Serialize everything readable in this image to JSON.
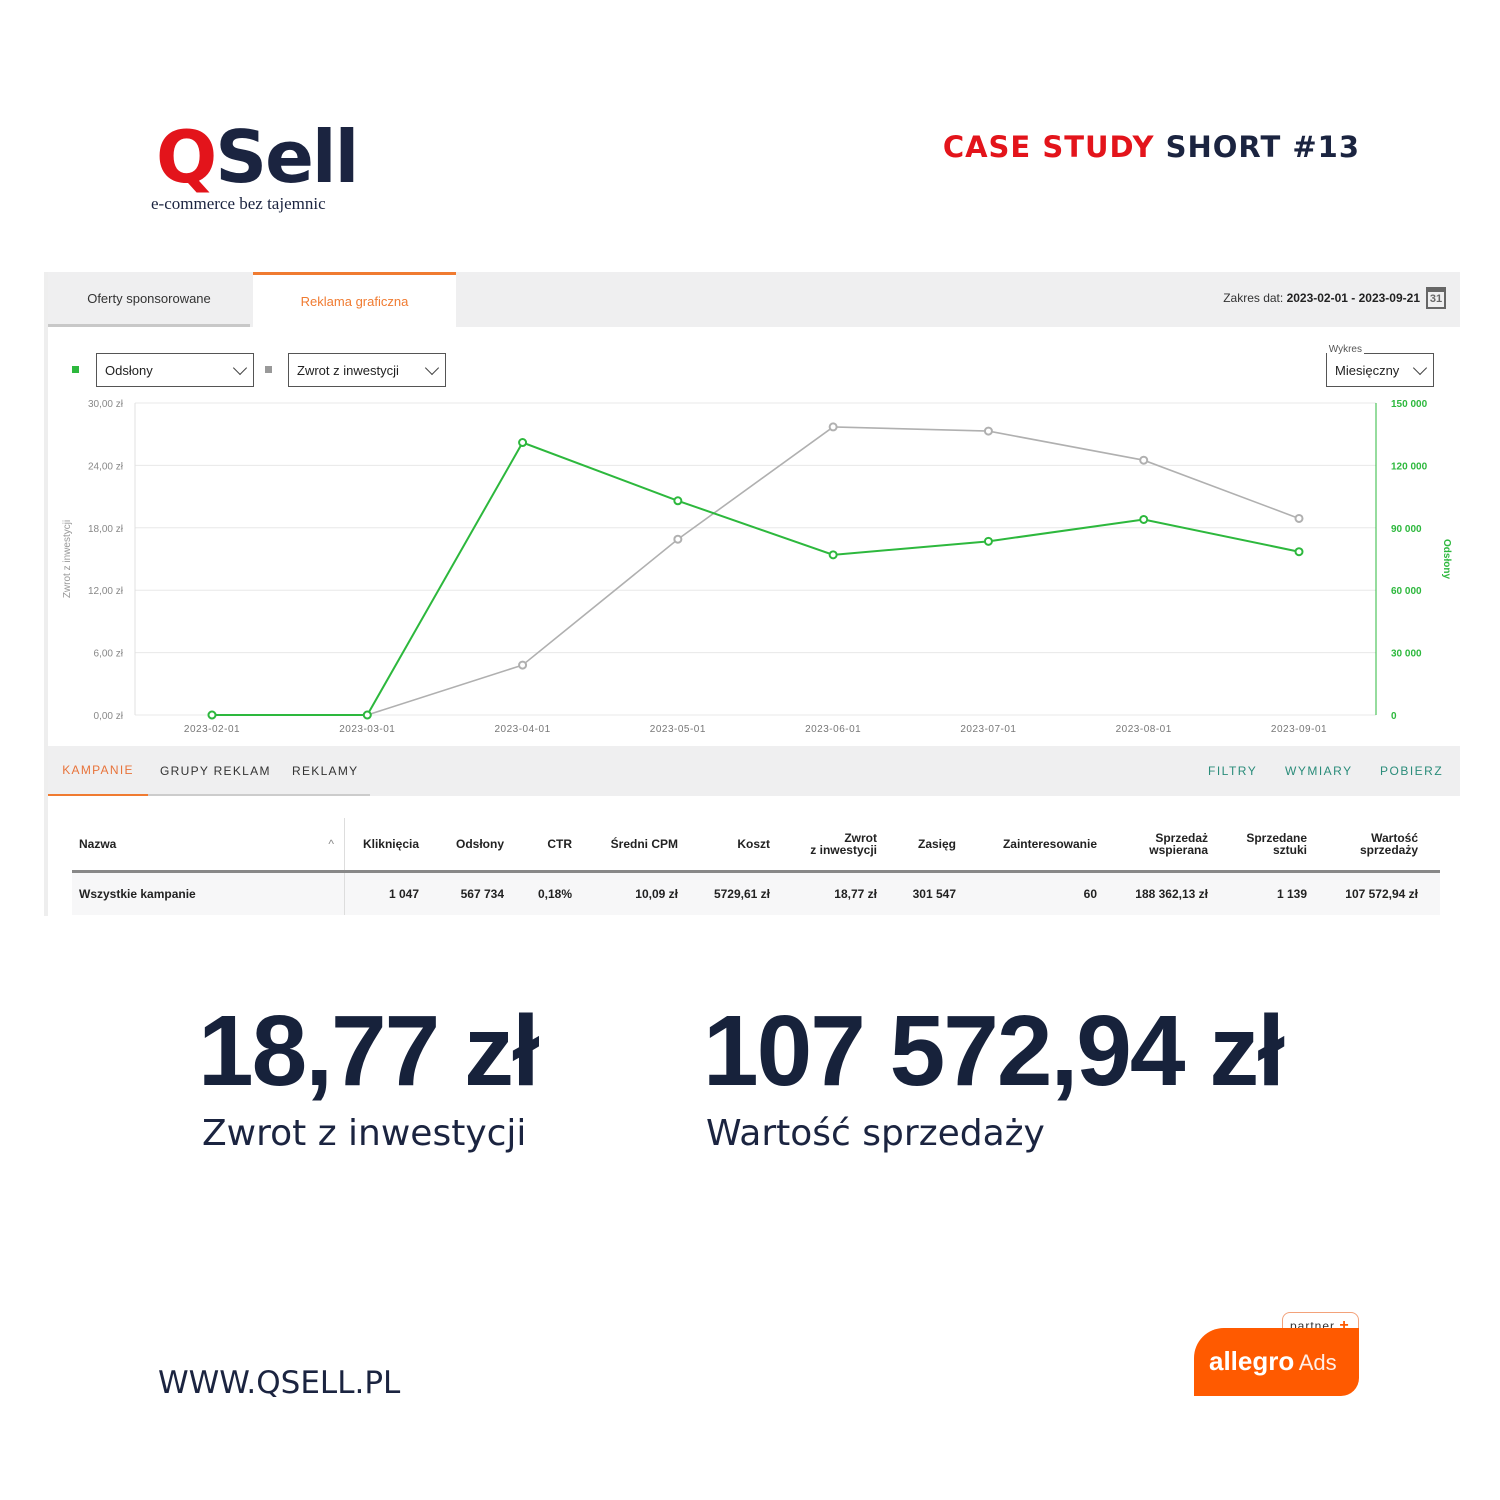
{
  "header": {
    "logo_text": "QSell",
    "tagline": "e-commerce bez tajemnic",
    "case_study_red": "CASE STUDY",
    "case_study_rest": "SHORT #13"
  },
  "dashboard": {
    "tabs": [
      {
        "label": "Oferty sponsorowane",
        "active": false
      },
      {
        "label": "Reklama graficzna",
        "active": true
      }
    ],
    "date_range_label": "Zakres dat:",
    "date_range_value": "2023-02-01 - 2023-09-21",
    "calendar_icon_day": "31",
    "metric_select_1": "Odsłony",
    "metric_select_2": "Zwrot z inwestycji",
    "chart_mode_label": "Wykres",
    "chart_mode_value": "Miesięczny",
    "subtabs": [
      {
        "label": "KAMPANIE",
        "active": true
      },
      {
        "label": "GRUPY REKLAM",
        "active": false
      },
      {
        "label": "REKLAMY",
        "active": false
      }
    ],
    "actions": [
      "FILTRY",
      "WYMIARY",
      "POBIERZ"
    ],
    "table": {
      "headers": [
        "Nazwa",
        "Kliknięcia",
        "Odsłony",
        "CTR",
        "Średni CPM",
        "Koszt",
        "Zwrot z inwestycji",
        "Zasięg",
        "Zainteresowanie",
        "Sprzedaż wspierana",
        "Sprzedane sztuki",
        "Wartość sprzedaży"
      ],
      "rows": [
        [
          "Wszystkie kampanie",
          "1 047",
          "567 734",
          "0,18%",
          "10,09 zł",
          "5729,61 zł",
          "18,77 zł",
          "301 547",
          "60",
          "188 362,13 zł",
          "1 139",
          "107 572,94 zł"
        ]
      ]
    }
  },
  "chart_data": {
    "type": "line",
    "x": [
      "2023-02-01",
      "2023-03-01",
      "2023-04-01",
      "2023-05-01",
      "2023-06-01",
      "2023-07-01",
      "2023-08-01",
      "2023-09-01"
    ],
    "series": [
      {
        "name": "Odsłony",
        "axis": "right",
        "color": "#2db83d",
        "values": [
          0,
          0,
          131000,
          103000,
          77000,
          83500,
          94000,
          78500
        ]
      },
      {
        "name": "Zwrot z inwestycji",
        "axis": "left",
        "color": "#b0b0b0",
        "values": [
          0,
          0,
          4.8,
          16.9,
          27.7,
          27.3,
          24.5,
          18.9
        ]
      }
    ],
    "ylabel_left": "Zwrot z inwestycji",
    "ylabel_right": "Odsłony",
    "ylim_left": [
      0,
      30
    ],
    "ylim_right": [
      0,
      150000
    ],
    "yticks_left": [
      "0,00 zł",
      "6,00 zł",
      "12,00 zł",
      "18,00 zł",
      "24,00 zł",
      "30,00 zł"
    ],
    "yticks_right": [
      "0",
      "30 000",
      "60 000",
      "90 000",
      "120 000",
      "150 000"
    ],
    "grid": true
  },
  "highlights": [
    {
      "value": "18,77 zł",
      "label": "Zwrot z inwestycji"
    },
    {
      "value": "107 572,94 zł",
      "label": "Wartość sprzedaży"
    }
  ],
  "footer": {
    "website": "WWW.QSELL.PL",
    "partner_label": "partner",
    "partner_brand": "allegro",
    "partner_product": "Ads"
  },
  "colors": {
    "brand_red": "#e3141b",
    "navy": "#17223b",
    "accent_orange": "#f07b31",
    "allegro_orange": "#ff5a00",
    "green": "#2db83d",
    "teal": "#2a8c7a"
  }
}
